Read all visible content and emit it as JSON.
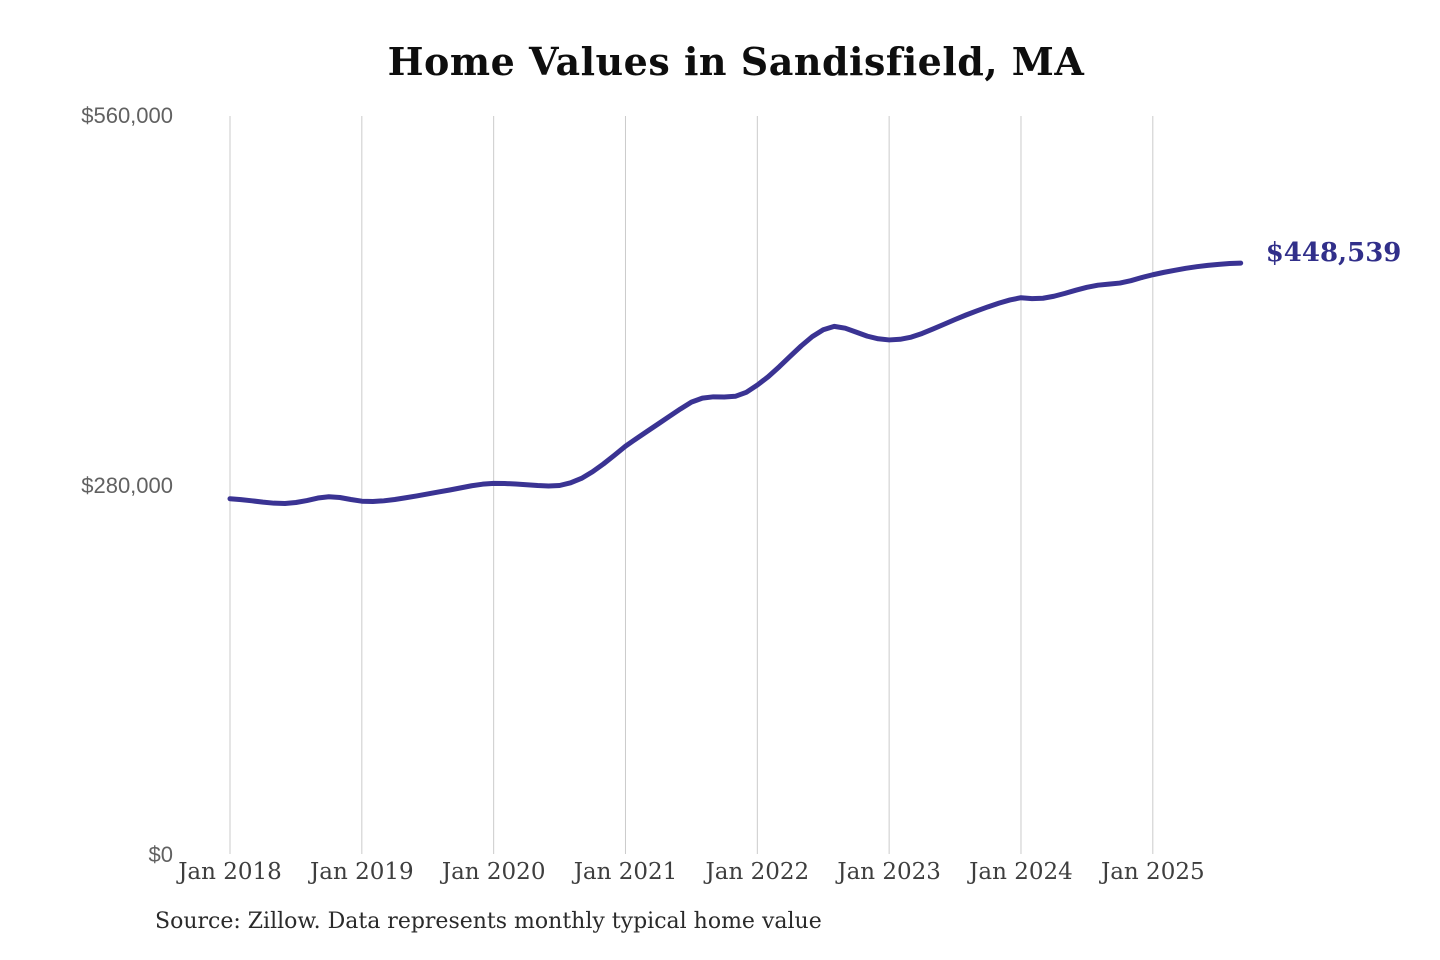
{
  "title": "Home Values in Sandisfield, MA",
  "source": "Source: Zillow. Data represents monthly typical home value",
  "annotation": {
    "label": "$448,539"
  },
  "colors": {
    "line": "#3a3393",
    "annotation": "#312f8a",
    "gridline": "#cbcbcb",
    "y_label": "#616161",
    "x_label": "#3e3e3e",
    "title": "#0e0e0e",
    "background": "#ffffff"
  },
  "chart_data": {
    "type": "line",
    "title": "Home Values in Sandisfield, MA",
    "series_name": "Typical home value (monthly)",
    "ylim": [
      0,
      560000
    ],
    "grid": "vertical-only",
    "legend": "none",
    "end_label": "$448,539",
    "final_value": 448539,
    "x_tick_labels": [
      "Jan 2018",
      "Jan 2019",
      "Jan 2020",
      "Jan 2021",
      "Jan 2022",
      "Jan 2023",
      "Jan 2024",
      "Jan 2025"
    ],
    "y_ticks": [
      {
        "value": 0,
        "label": "$0"
      },
      {
        "value": 280000,
        "label": "$280,000"
      },
      {
        "value": 560000,
        "label": "$560,000"
      }
    ],
    "x": [
      "2018-01",
      "2018-02",
      "2018-03",
      "2018-04",
      "2018-05",
      "2018-06",
      "2018-07",
      "2018-08",
      "2018-09",
      "2018-10",
      "2018-11",
      "2018-12",
      "2019-01",
      "2019-02",
      "2019-03",
      "2019-04",
      "2019-05",
      "2019-06",
      "2019-07",
      "2019-08",
      "2019-09",
      "2019-10",
      "2019-11",
      "2019-12",
      "2020-01",
      "2020-02",
      "2020-03",
      "2020-04",
      "2020-05",
      "2020-06",
      "2020-07",
      "2020-08",
      "2020-09",
      "2020-10",
      "2020-11",
      "2020-12",
      "2021-01",
      "2021-02",
      "2021-03",
      "2021-04",
      "2021-05",
      "2021-06",
      "2021-07",
      "2021-08",
      "2021-09",
      "2021-10",
      "2021-11",
      "2021-12",
      "2022-01",
      "2022-02",
      "2022-03",
      "2022-04",
      "2022-05",
      "2022-06",
      "2022-07",
      "2022-08",
      "2022-09",
      "2022-10",
      "2022-11",
      "2022-12",
      "2023-01",
      "2023-02",
      "2023-03",
      "2023-04",
      "2023-05",
      "2023-06",
      "2023-07",
      "2023-08",
      "2023-09",
      "2023-10",
      "2023-11",
      "2023-12",
      "2024-01",
      "2024-02",
      "2024-03",
      "2024-04",
      "2024-05",
      "2024-06",
      "2024-07",
      "2024-08",
      "2024-09",
      "2024-10",
      "2024-11",
      "2024-12",
      "2025-01",
      "2025-02",
      "2025-03",
      "2025-04",
      "2025-05",
      "2025-06",
      "2025-07",
      "2025-08",
      "2025-09"
    ],
    "values": [
      270000,
      269300,
      268400,
      267400,
      266600,
      266400,
      267100,
      268600,
      270500,
      271500,
      270900,
      269400,
      268100,
      267900,
      268400,
      269400,
      270700,
      272100,
      273600,
      275100,
      276600,
      278200,
      279800,
      281000,
      281600,
      281500,
      281100,
      280600,
      280000,
      279600,
      280000,
      282000,
      285400,
      290400,
      296400,
      303000,
      309800,
      315600,
      321200,
      326800,
      332400,
      338000,
      343200,
      346200,
      347200,
      347100,
      347600,
      350600,
      356100,
      362500,
      370000,
      378000,
      385800,
      392800,
      398000,
      400600,
      399200,
      396200,
      393200,
      391200,
      390300,
      390800,
      392400,
      395200,
      398600,
      402200,
      405800,
      409200,
      412400,
      415400,
      418200,
      420600,
      422300,
      421600,
      421900,
      423400,
      425600,
      428000,
      430200,
      431800,
      432600,
      433400,
      435200,
      437600,
      439700,
      441500,
      443100,
      444600,
      445800,
      446800,
      447600,
      448200,
      448539
    ]
  }
}
